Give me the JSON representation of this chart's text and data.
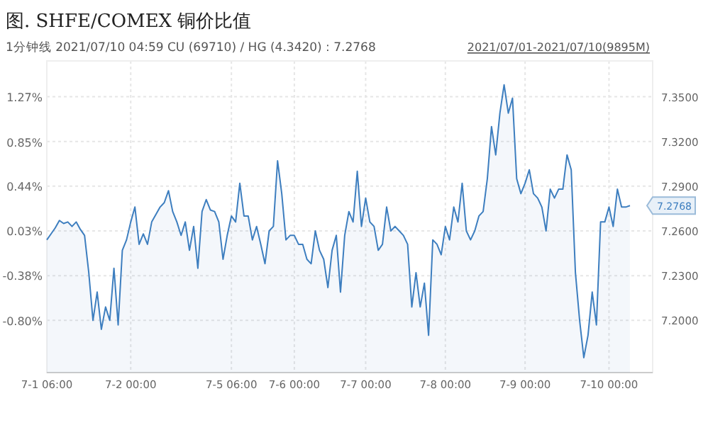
{
  "chart_data": {
    "type": "area",
    "title": "图. SHFE/COMEX 铜价比值",
    "subtitle": "1分钟线 2021/07/10 04:59 CU (69710) / HG (4.3420) : 7.2768",
    "annotations": [
      "2021/07/01-2021/07/10(9895M)",
      "7.2768"
    ],
    "grid": true,
    "categories": [
      "7-1 06:00",
      null,
      null,
      null,
      null,
      null,
      null,
      null,
      null,
      null,
      null,
      null,
      null,
      null,
      null,
      null,
      null,
      null,
      null,
      null,
      "7-2 00:00",
      null,
      null,
      null,
      null,
      null,
      null,
      null,
      null,
      null,
      null,
      null,
      null,
      null,
      null,
      null,
      null,
      null,
      null,
      null,
      null,
      null,
      null,
      null,
      "7-5 06:00",
      null,
      null,
      null,
      null,
      null,
      null,
      null,
      null,
      null,
      null,
      null,
      null,
      null,
      null,
      "7-6 00:00",
      null,
      null,
      null,
      null,
      null,
      null,
      null,
      null,
      null,
      null,
      null,
      null,
      null,
      null,
      null,
      null,
      "7-7 00:00",
      null,
      null,
      null,
      null,
      null,
      null,
      null,
      null,
      null,
      null,
      null,
      null,
      null,
      null,
      null,
      null,
      null,
      null,
      "7-8 00:00",
      null,
      null,
      null,
      null,
      null,
      null,
      null,
      null,
      null,
      null,
      null,
      null,
      null,
      null,
      null,
      null,
      null,
      null,
      "7-9 00:00",
      null,
      null,
      null,
      null,
      null,
      null,
      null,
      null,
      null,
      null,
      null,
      null,
      null,
      null,
      null,
      null,
      null,
      null,
      null,
      "7-10 00:00",
      null,
      null,
      null,
      null,
      null
    ],
    "ylim": [
      7.165,
      7.374
    ],
    "yticks": [
      {
        "value": 7.2,
        "label": "7.2000"
      },
      {
        "value": 7.23,
        "label": "7.2300"
      },
      {
        "value": 7.26,
        "label": "7.2600"
      },
      {
        "value": 7.29,
        "label": "7.2900"
      },
      {
        "value": 7.32,
        "label": "7.3200"
      },
      {
        "value": 7.35,
        "label": "7.3500"
      }
    ],
    "y2lim": [
      -1.277,
      1.601
    ],
    "y2ticks": [
      {
        "value": -0.8,
        "label": "-0.80%"
      },
      {
        "value": -0.38,
        "label": "-0.38%"
      },
      {
        "value": 0.03,
        "label": "0.03%"
      },
      {
        "value": 0.44,
        "label": "0.44%"
      },
      {
        "value": 0.85,
        "label": "0.85%"
      },
      {
        "value": 1.27,
        "label": "1.27%"
      }
    ],
    "series": [
      {
        "color": "#3d7ebf",
        "values": [
          7.254,
          7.258,
          7.262,
          7.267,
          7.265,
          7.266,
          7.263,
          7.266,
          7.261,
          7.257,
          7.232,
          7.2,
          7.219,
          7.194,
          7.209,
          7.2,
          7.235,
          7.197,
          7.247,
          7.254,
          7.266,
          7.276,
          7.251,
          7.258,
          7.251,
          7.266,
          7.271,
          7.276,
          7.279,
          7.287,
          7.273,
          7.266,
          7.257,
          7.266,
          7.247,
          7.263,
          7.235,
          7.273,
          7.281,
          7.274,
          7.273,
          7.266,
          7.241,
          7.257,
          7.27,
          7.266,
          7.292,
          7.27,
          7.27,
          7.254,
          7.263,
          7.251,
          7.238,
          7.26,
          7.263,
          7.307,
          7.285,
          7.254,
          7.257,
          7.257,
          7.251,
          7.251,
          7.241,
          7.238,
          7.26,
          7.247,
          7.241,
          7.222,
          7.247,
          7.257,
          7.219,
          7.257,
          7.273,
          7.266,
          7.3,
          7.263,
          7.282,
          7.266,
          7.263,
          7.247,
          7.251,
          7.276,
          7.26,
          7.263,
          7.26,
          7.257,
          7.251,
          7.209,
          7.232,
          7.209,
          7.225,
          7.19,
          7.254,
          7.251,
          7.244,
          7.263,
          7.254,
          7.276,
          7.266,
          7.292,
          7.26,
          7.254,
          7.26,
          7.27,
          7.273,
          7.295,
          7.33,
          7.311,
          7.339,
          7.358,
          7.339,
          7.349,
          7.295,
          7.285,
          7.292,
          7.301,
          7.285,
          7.282,
          7.276,
          7.26,
          7.288,
          7.282,
          7.288,
          7.288,
          7.311,
          7.301,
          7.232,
          7.2,
          7.175,
          7.19,
          7.219,
          7.197,
          7.266,
          7.266,
          7.276,
          7.263,
          7.288,
          7.276,
          7.276,
          7.277
        ]
      }
    ]
  }
}
